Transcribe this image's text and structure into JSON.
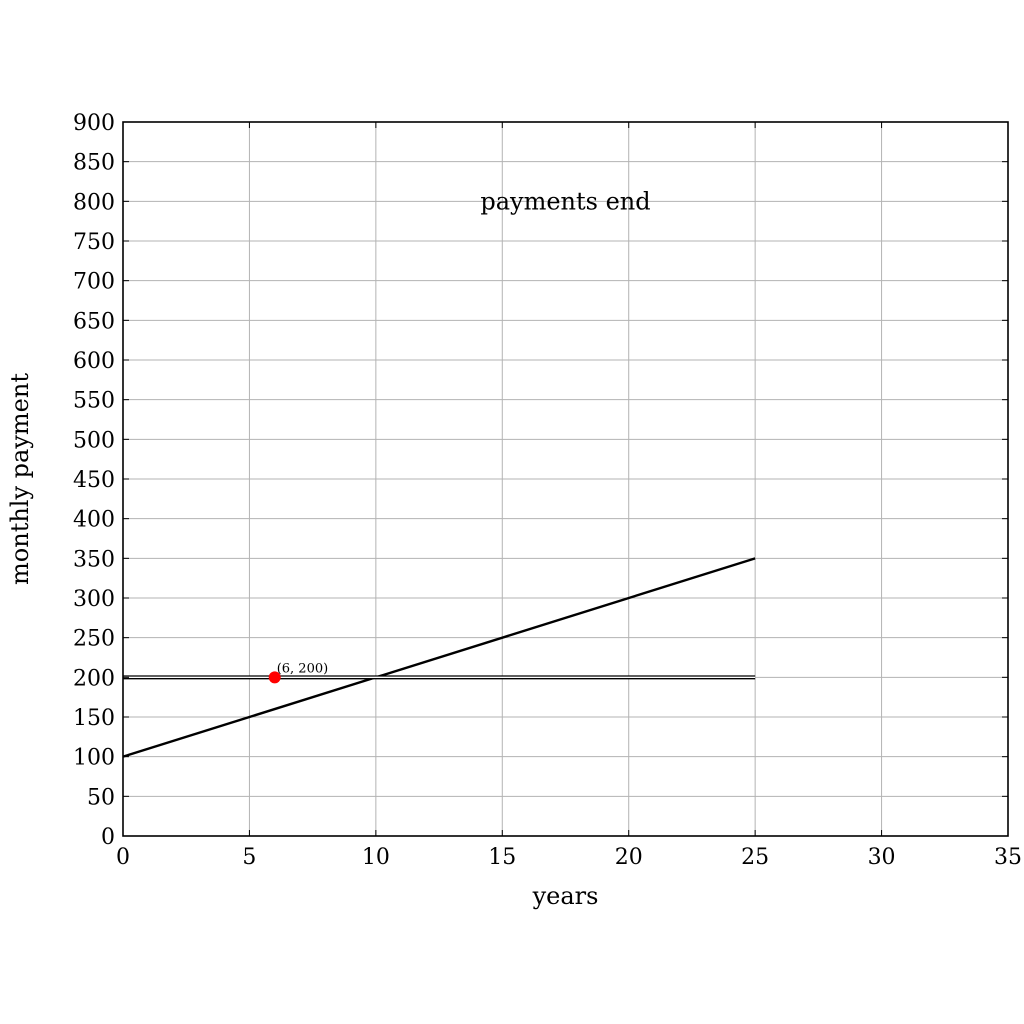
{
  "chart_data": {
    "type": "line",
    "title": "",
    "xlabel": "years",
    "ylabel": "monthly payment",
    "xlim": [
      0,
      35
    ],
    "ylim": [
      0,
      900
    ],
    "x_ticks": [
      0,
      5,
      10,
      15,
      20,
      25,
      30,
      35
    ],
    "y_ticks": [
      0,
      50,
      100,
      150,
      200,
      250,
      300,
      350,
      400,
      450,
      500,
      550,
      600,
      650,
      700,
      750,
      800,
      850,
      900
    ],
    "grid": true,
    "series": [
      {
        "x": [
          0,
          25
        ],
        "y": [
          100,
          350
        ],
        "color": "#000000",
        "style": "solid"
      },
      {
        "x": [
          0,
          25
        ],
        "y": [
          200,
          200
        ],
        "color": "#000000",
        "style": "double"
      }
    ],
    "points": [
      {
        "x": 6,
        "y": 200,
        "label": "(6, 200)",
        "color": "#ff0000"
      }
    ],
    "annotations": [
      {
        "text": "payments end",
        "x": 17.5,
        "y": 800
      }
    ]
  }
}
